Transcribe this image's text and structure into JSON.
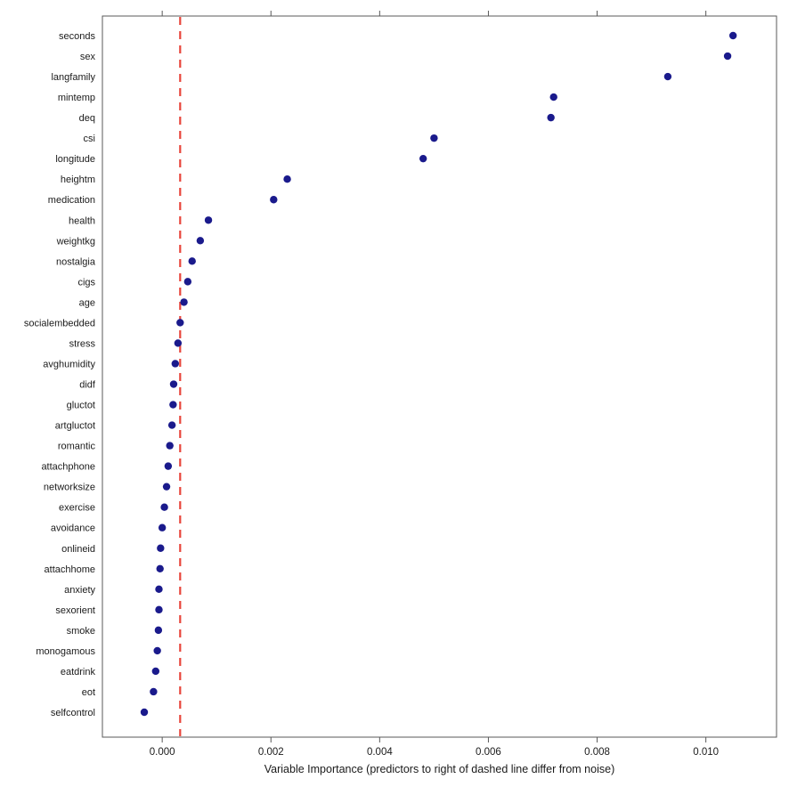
{
  "chart_data": {
    "type": "scatter",
    "title": "",
    "xlabel": "Variable Importance (predictors to right of dashed line differ from noise)",
    "ylabel": "",
    "xlim": [
      -0.0011,
      0.0113
    ],
    "x_ticks": [
      0,
      0.002,
      0.004,
      0.006,
      0.008,
      0.01
    ],
    "x_tick_labels": [
      "0.000",
      "0.002",
      "0.004",
      "0.006",
      "0.008",
      "0.010"
    ],
    "dashed_line_x": 0.00033,
    "grid": false,
    "legend_position": "none",
    "dot_color": "#1a1a8c",
    "dashed_line_color": "#e8463c",
    "axis_color": "#595959",
    "categories": [
      "seconds",
      "sex",
      "langfamily",
      "mintemp",
      "deq",
      "csi",
      "longitude",
      "heightm",
      "medication",
      "health",
      "weightkg",
      "nostalgia",
      "cigs",
      "age",
      "socialembedded",
      "stress",
      "avghumidity",
      "didf",
      "gluctot",
      "artgluctot",
      "romantic",
      "attachphone",
      "networksize",
      "exercise",
      "avoidance",
      "onlineid",
      "attachhome",
      "anxiety",
      "sexorient",
      "smoke",
      "monogamous",
      "eatdrink",
      "eot",
      "selfcontrol"
    ],
    "values": [
      0.0105,
      0.0104,
      0.0093,
      0.0072,
      0.00715,
      0.005,
      0.0048,
      0.0023,
      0.00205,
      0.00085,
      0.0007,
      0.00055,
      0.00047,
      0.0004,
      0.00033,
      0.00029,
      0.00024,
      0.00021,
      0.0002,
      0.00018,
      0.00014,
      0.00011,
      8e-05,
      4e-05,
      0.0,
      -3e-05,
      -4e-05,
      -6e-05,
      -6e-05,
      -7e-05,
      -9e-05,
      -0.00012,
      -0.00016,
      -0.00033
    ]
  }
}
